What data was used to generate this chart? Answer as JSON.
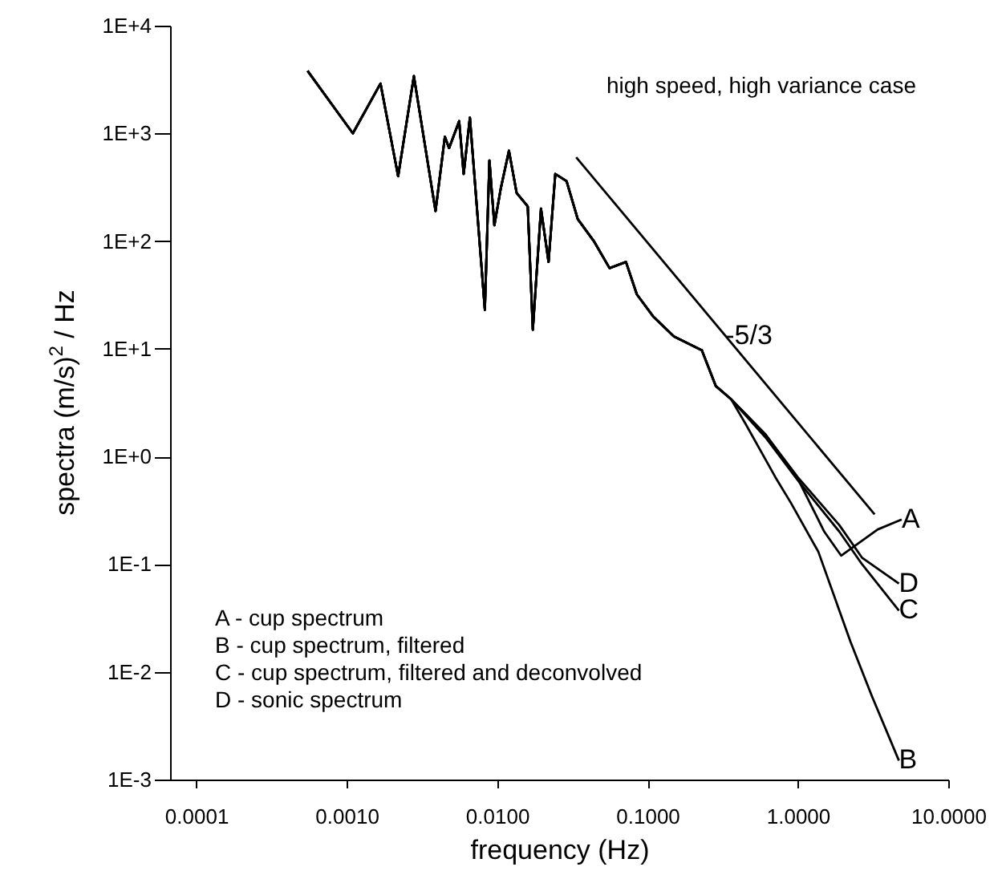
{
  "chart_data": {
    "type": "line",
    "title": "high speed, high variance case",
    "xlabel": "frequency (Hz)",
    "ylabel": "spectra (m/s)$^{2}$ / Hz",
    "log": "xy",
    "grid": false,
    "line_style": "solid",
    "marker": "none",
    "xlim": [
      6.7e-05,
      10
    ],
    "ylim": [
      0.001,
      10000
    ],
    "xticks": [
      {
        "value": 0.0001,
        "label": "0.0001"
      },
      {
        "value": 0.001,
        "label": "0.0010"
      },
      {
        "value": 0.01,
        "label": "0.0100"
      },
      {
        "value": 0.1,
        "label": "0.1000"
      },
      {
        "value": 1,
        "label": "1.0000"
      },
      {
        "value": 10,
        "label": "10.0000"
      }
    ],
    "yticks": [
      {
        "value": 0.001,
        "label": "1E-3"
      },
      {
        "value": 0.01,
        "label": "1E-2"
      },
      {
        "value": 0.1,
        "label": "1E-1"
      },
      {
        "value": 1,
        "label": "1E+0"
      },
      {
        "value": 10,
        "label": "1E+1"
      },
      {
        "value": 100,
        "label": "1E+2"
      },
      {
        "value": 1000,
        "label": "1E+3"
      },
      {
        "value": 10000,
        "label": "1E+4"
      }
    ],
    "annotations": [
      "A - cup spectrum",
      "B - cup spectrum, filtered",
      "C - cup spectrum, filtered and deconvolved",
      "D - sonic spectrum"
    ],
    "series": [
      {
        "name": "A",
        "color": "#000000",
        "x": [
          0.00055,
          0.0011,
          0.00168,
          0.0022,
          0.0028,
          0.0039,
          0.0045,
          0.0048,
          0.0056,
          0.006,
          0.0066,
          0.0083,
          0.0089,
          0.0096,
          0.0106,
          0.012,
          0.0135,
          0.016,
          0.0173,
          0.0196,
          0.022,
          0.0244,
          0.029,
          0.0344,
          0.044,
          0.056,
          0.072,
          0.085,
          0.109,
          0.15,
          0.23,
          0.285,
          0.36,
          0.61,
          1.0,
          1.5,
          1.94,
          3.4,
          4.9
        ],
        "values": [
          3800,
          1000,
          2900,
          400,
          3400,
          190,
          930,
          730,
          1300,
          420,
          1400,
          23,
          560,
          140,
          310,
          690,
          280,
          210,
          15,
          200,
          64,
          420,
          360,
          160,
          100,
          56,
          64,
          32,
          20,
          13,
          9.7,
          4.5,
          3.4,
          1.6,
          0.62,
          0.2,
          0.12,
          0.21,
          0.26
        ]
      },
      {
        "name": "B",
        "color": "#000000",
        "x": [
          0.00055,
          0.0011,
          0.00168,
          0.0022,
          0.0028,
          0.0039,
          0.0045,
          0.0048,
          0.0056,
          0.006,
          0.0066,
          0.0083,
          0.0089,
          0.0096,
          0.0106,
          0.012,
          0.0135,
          0.016,
          0.0173,
          0.0196,
          0.022,
          0.0244,
          0.029,
          0.0344,
          0.044,
          0.056,
          0.072,
          0.085,
          0.109,
          0.15,
          0.23,
          0.285,
          0.36,
          0.45,
          0.71,
          0.9,
          1.37,
          2.24,
          3.1,
          4.7
        ],
        "values": [
          3800,
          1000,
          2900,
          400,
          3400,
          190,
          930,
          730,
          1300,
          420,
          1400,
          23,
          560,
          140,
          310,
          690,
          280,
          210,
          15,
          200,
          64,
          420,
          360,
          160,
          100,
          56,
          64,
          32,
          20,
          13,
          9.7,
          4.5,
          3.4,
          2.0,
          0.64,
          0.37,
          0.13,
          0.019,
          0.006,
          0.0015
        ]
      },
      {
        "name": "C",
        "color": "#000000",
        "x": [
          0.00055,
          0.0011,
          0.00168,
          0.0022,
          0.0028,
          0.0039,
          0.0045,
          0.0048,
          0.0056,
          0.006,
          0.0066,
          0.0083,
          0.0089,
          0.0096,
          0.0106,
          0.012,
          0.0135,
          0.016,
          0.0173,
          0.0196,
          0.022,
          0.0244,
          0.029,
          0.0344,
          0.044,
          0.056,
          0.072,
          0.085,
          0.109,
          0.15,
          0.23,
          0.285,
          0.36,
          0.61,
          1.0,
          1.89,
          2.67,
          4.7
        ],
        "values": [
          3800,
          1000,
          2900,
          400,
          3400,
          190,
          930,
          730,
          1300,
          420,
          1400,
          23,
          560,
          140,
          310,
          690,
          280,
          210,
          15,
          200,
          64,
          420,
          360,
          160,
          100,
          56,
          64,
          32,
          20,
          13,
          9.7,
          4.5,
          3.4,
          1.5,
          0.6,
          0.2,
          0.1,
          0.037
        ]
      },
      {
        "name": "D",
        "color": "#000000",
        "x": [
          0.00055,
          0.0011,
          0.00168,
          0.0022,
          0.0028,
          0.0039,
          0.0045,
          0.0048,
          0.0056,
          0.006,
          0.0066,
          0.0083,
          0.0089,
          0.0096,
          0.0106,
          0.012,
          0.0135,
          0.016,
          0.0173,
          0.0196,
          0.022,
          0.0244,
          0.029,
          0.0344,
          0.044,
          0.056,
          0.072,
          0.085,
          0.109,
          0.15,
          0.23,
          0.285,
          0.36,
          0.61,
          1.0,
          1.89,
          2.67,
          4.7
        ],
        "values": [
          3800,
          1000,
          2900,
          400,
          3400,
          190,
          930,
          730,
          1300,
          420,
          1400,
          23,
          560,
          140,
          310,
          690,
          280,
          210,
          15,
          200,
          64,
          420,
          360,
          160,
          100,
          56,
          64,
          32,
          20,
          13,
          9.7,
          4.5,
          3.4,
          1.6,
          0.64,
          0.23,
          0.115,
          0.066
        ]
      },
      {
        "name": "-5/3",
        "color": "#000000",
        "x": [
          0.0336,
          3.24
        ],
        "values": [
          600,
          0.29
        ]
      }
    ]
  }
}
